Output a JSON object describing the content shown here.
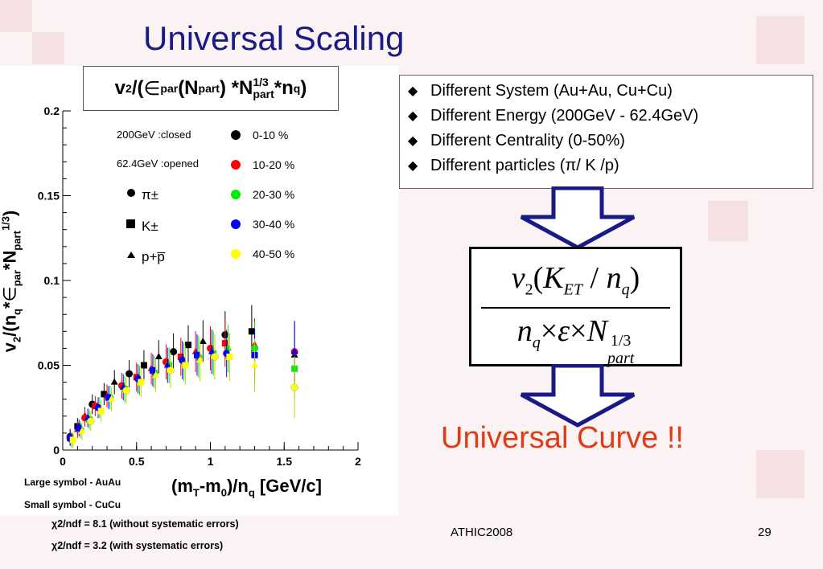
{
  "slide": {
    "title": "Universal Scaling",
    "footer_left": "ATHIC2008",
    "footer_right": "29"
  },
  "plot": {
    "formula_parts": [
      "v",
      "2",
      "/(",
      "∈",
      "par",
      "(N",
      "part",
      ") *N",
      "1/3",
      "part",
      " *n",
      "q",
      ")"
    ],
    "ylabel_parts": [
      "v",
      "2",
      "/(n",
      "q",
      " *",
      "∈",
      "par",
      " *N",
      "part",
      "1/3",
      ")"
    ],
    "xlabel_parts": [
      "(m",
      "T",
      "-m",
      "0",
      ")/n",
      "q",
      " [GeV/c]"
    ],
    "legend": {
      "energy_closed": "200GeV :closed",
      "energy_opened": "62.4GeV :opened",
      "particles": [
        {
          "symbol": "circle",
          "label": "π±"
        },
        {
          "symbol": "square",
          "label": "K±"
        },
        {
          "symbol": "triangle",
          "label": "p+p̅"
        }
      ],
      "centralities": [
        {
          "label": "0-10 %",
          "color": "#000000"
        },
        {
          "label": "10-20 %",
          "color": "#ff0000"
        },
        {
          "label": "20-30 %",
          "color": "#00ee00"
        },
        {
          "label": "30-40 %",
          "color": "#0000ff"
        },
        {
          "label": "40-50 %",
          "color": "#ffff00"
        }
      ]
    },
    "notes": {
      "large": "Large symbol - AuAu",
      "small": "Small symbol - CuCu",
      "chi1": "χ2/ndf = 8.1 (without systematic errors)",
      "chi2": "χ2/ndf = 3.2 (with systematic errors)"
    }
  },
  "bullets": [
    "Different System (Au+Au, Cu+Cu)",
    "Different Energy (200GeV - 62.4GeV)",
    "Different Centrality (0-50%)",
    "Different particles (π/ K /p)"
  ],
  "equation": {
    "num_parts": [
      "v",
      "2",
      "(",
      "K",
      "ET",
      " / ",
      "n",
      "q",
      ")"
    ],
    "den_parts": [
      "n",
      "q",
      "×",
      "ε",
      "×",
      "N",
      "part",
      "1/3"
    ]
  },
  "conclusion": "Universal Curve !!",
  "chart_data": {
    "type": "scatter",
    "title": "v2/(∈par(Npart) *N1/3part *nq)",
    "xlabel": "(mT-m0)/nq [GeV/c]",
    "ylabel": "v2/(nq *∈par *N1/3part)",
    "xlim": [
      0,
      2
    ],
    "ylim": [
      0,
      0.2
    ],
    "xticks": [
      "0",
      "0.5",
      "1",
      "1.5",
      "2"
    ],
    "yticks": [
      "0",
      "0.05",
      "0.1",
      "0.15",
      "0.2"
    ],
    "grid": false,
    "legend_position": "top-right",
    "series": [
      {
        "name": "0-10 %",
        "color": "#000000",
        "x": [
          0.05,
          0.1,
          0.15,
          0.2,
          0.28,
          0.35,
          0.45,
          0.55,
          0.65,
          0.75,
          0.85,
          0.95,
          1.1,
          1.28,
          1.57
        ],
        "y": [
          0.008,
          0.014,
          0.02,
          0.027,
          0.033,
          0.04,
          0.045,
          0.05,
          0.055,
          0.058,
          0.062,
          0.064,
          0.068,
          0.07,
          0.056
        ]
      },
      {
        "name": "10-20 %",
        "color": "#ff0000",
        "x": [
          0.05,
          0.1,
          0.15,
          0.22,
          0.3,
          0.4,
          0.5,
          0.6,
          0.7,
          0.8,
          0.9,
          1.0,
          1.1,
          1.3,
          1.57
        ],
        "y": [
          0.007,
          0.012,
          0.019,
          0.026,
          0.032,
          0.038,
          0.043,
          0.048,
          0.052,
          0.055,
          0.058,
          0.06,
          0.063,
          0.062,
          0.058
        ]
      },
      {
        "name": "20-30 %",
        "color": "#00ee00",
        "x": [
          0.06,
          0.12,
          0.18,
          0.25,
          0.32,
          0.42,
          0.52,
          0.62,
          0.72,
          0.82,
          0.92,
          1.02,
          1.12,
          1.3,
          1.57
        ],
        "y": [
          0.006,
          0.012,
          0.018,
          0.025,
          0.031,
          0.036,
          0.041,
          0.046,
          0.05,
          0.052,
          0.055,
          0.057,
          0.06,
          0.06,
          0.048
        ]
      },
      {
        "name": "30-40 %",
        "color": "#0000ff",
        "x": [
          0.05,
          0.11,
          0.17,
          0.24,
          0.31,
          0.41,
          0.51,
          0.61,
          0.71,
          0.81,
          0.91,
          1.01,
          1.11,
          1.3,
          1.57
        ],
        "y": [
          0.007,
          0.013,
          0.019,
          0.025,
          0.031,
          0.037,
          0.042,
          0.047,
          0.05,
          0.053,
          0.056,
          0.058,
          0.057,
          0.056,
          0.058
        ]
      },
      {
        "name": "40-50 %",
        "color": "#ffff00",
        "x": [
          0.07,
          0.13,
          0.19,
          0.26,
          0.33,
          0.43,
          0.53,
          0.63,
          0.73,
          0.83,
          0.93,
          1.03,
          1.13,
          1.3,
          1.57
        ],
        "y": [
          0.006,
          0.011,
          0.017,
          0.023,
          0.03,
          0.035,
          0.04,
          0.044,
          0.047,
          0.05,
          0.053,
          0.055,
          0.055,
          0.05,
          0.037
        ]
      }
    ]
  }
}
